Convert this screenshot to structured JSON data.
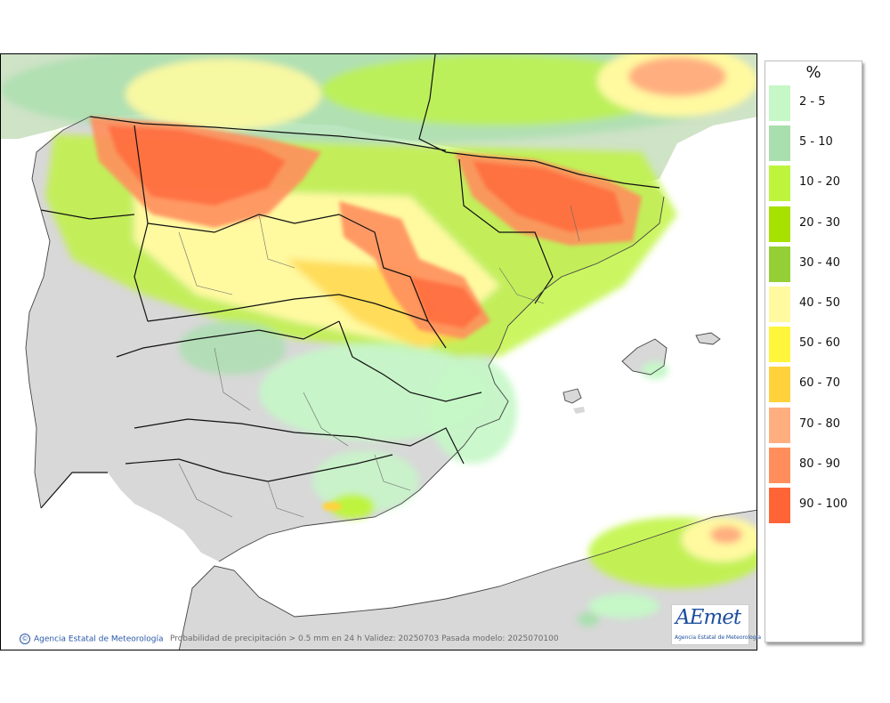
{
  "legend": {
    "unit": "%",
    "items": [
      {
        "label": "2 - 5",
        "color": "#c5f7c7"
      },
      {
        "label": "5 - 10",
        "color": "#a9dfae"
      },
      {
        "label": "10 - 20",
        "color": "#bef43c"
      },
      {
        "label": "20 - 30",
        "color": "#a6e100"
      },
      {
        "label": "30 - 40",
        "color": "#94cf36"
      },
      {
        "label": "40 - 50",
        "color": "#fff9a0"
      },
      {
        "label": "50 - 60",
        "color": "#fff53a"
      },
      {
        "label": "60 - 70",
        "color": "#ffd23c"
      },
      {
        "label": "70 - 80",
        "color": "#ffae80"
      },
      {
        "label": "80 - 90",
        "color": "#ff8e5c"
      },
      {
        "label": "90 - 100",
        "color": "#ff6437"
      }
    ]
  },
  "footer": {
    "credit": "Agencia Estatal de Meteorología",
    "caption": "Probabilidad de precipitación > 0.5 mm en 24 h Validez: 20250703 Pasada modelo: 2025070100"
  },
  "logo": {
    "wordmark": "AEmet",
    "subtitle": "Agencia Estatal de Meteorología"
  },
  "map": {
    "land_color": "#d8d8d8",
    "sea_color": "#ffffff"
  }
}
